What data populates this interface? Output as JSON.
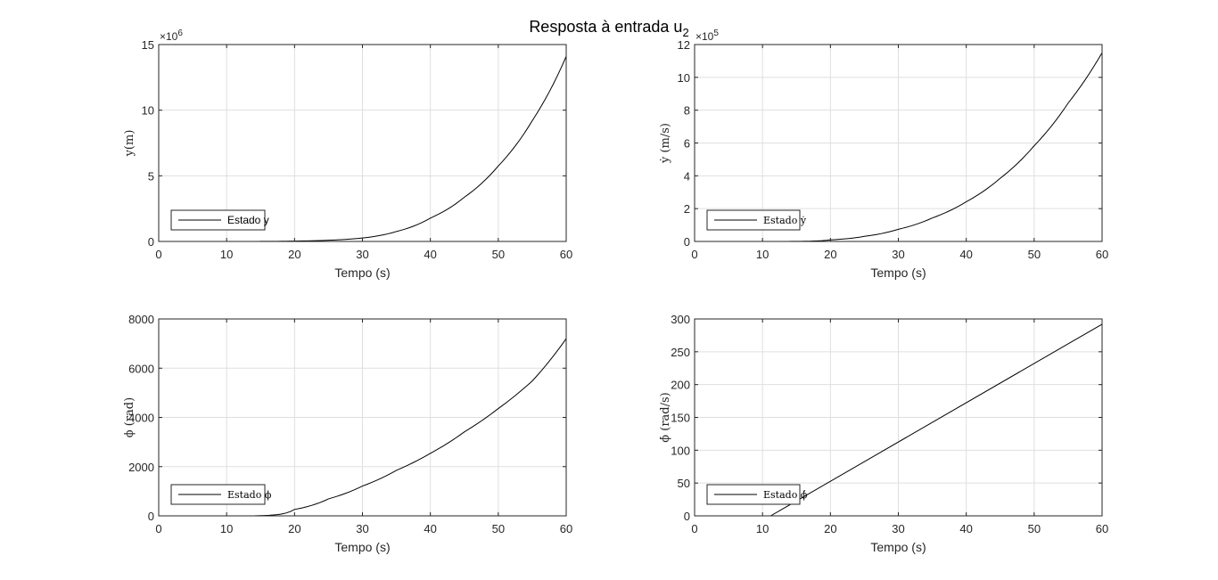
{
  "title": "Resposta à entrada u",
  "title_subscript": "2",
  "chart_data": [
    {
      "type": "line",
      "xlabel": "Tempo (s)",
      "ylabel": "y(m)",
      "xlim": [
        0,
        60
      ],
      "ylim": [
        0,
        15
      ],
      "xticks": [
        0,
        10,
        20,
        30,
        40,
        50,
        60
      ],
      "yticks": [
        0,
        5,
        10,
        15
      ],
      "y_multiplier_base": "×10",
      "y_multiplier_exp": "6",
      "grid": true,
      "legend_location": "bottom-left",
      "series": [
        {
          "name": "Estado y",
          "color": "#000000",
          "x": [
            13,
            15,
            20,
            25,
            30,
            35,
            40,
            45,
            50,
            55,
            60
          ],
          "y": [
            0.0014,
            0.0046,
            0.0287,
            0.092,
            0.263,
            0.758,
            1.78,
            3.37,
            5.75,
            9.2,
            14.1
          ]
        }
      ]
    },
    {
      "type": "line",
      "xlabel": "Tempo (s)",
      "ylabel": "ẏ (m/s)",
      "xlim": [
        0,
        60
      ],
      "ylim": [
        0,
        12
      ],
      "xticks": [
        0,
        10,
        20,
        30,
        40,
        50,
        60
      ],
      "yticks": [
        0,
        2,
        4,
        6,
        8,
        10,
        12
      ],
      "y_multiplier_base": "×10",
      "y_multiplier_exp": "5",
      "grid": true,
      "legend_location": "bottom-left",
      "series": [
        {
          "name": "Estado ẏ",
          "color": "#000000",
          "x": [
            12,
            15,
            20,
            25,
            30,
            35,
            40,
            45,
            50,
            55,
            60
          ],
          "y": [
            0.001,
            0.006,
            0.094,
            0.31,
            0.74,
            1.43,
            2.42,
            3.85,
            5.83,
            8.43,
            11.5
          ]
        }
      ]
    },
    {
      "type": "line",
      "xlabel": "Tempo (s)",
      "ylabel": "ϕ (rad)",
      "xlim": [
        0,
        60
      ],
      "ylim": [
        0,
        8000
      ],
      "xticks": [
        0,
        10,
        20,
        30,
        40,
        50,
        60
      ],
      "yticks": [
        0,
        2000,
        4000,
        6000,
        8000
      ],
      "grid": true,
      "legend_location": "bottom-left",
      "series": [
        {
          "name": "Estado ϕ",
          "color": "#000000",
          "x": [
            14,
            15,
            20,
            25,
            30,
            35,
            40,
            45,
            50,
            55,
            60
          ],
          "y": [
            0,
            10,
            260,
            690,
            1210,
            1850,
            2540,
            3410,
            4360,
            5480,
            7200
          ]
        }
      ]
    },
    {
      "type": "line",
      "xlabel": "Tempo (s)",
      "ylabel": "ϕ̇ (rad/s)",
      "xlim": [
        0,
        60
      ],
      "ylim": [
        0,
        300
      ],
      "xticks": [
        0,
        10,
        20,
        30,
        40,
        50,
        60
      ],
      "yticks": [
        0,
        50,
        100,
        150,
        200,
        250,
        300
      ],
      "grid": true,
      "legend_location": "bottom-left",
      "series": [
        {
          "name": "Estado ϕ̇",
          "color": "#000000",
          "x": [
            11.2,
            60
          ],
          "y": [
            0,
            292
          ]
        }
      ]
    }
  ]
}
